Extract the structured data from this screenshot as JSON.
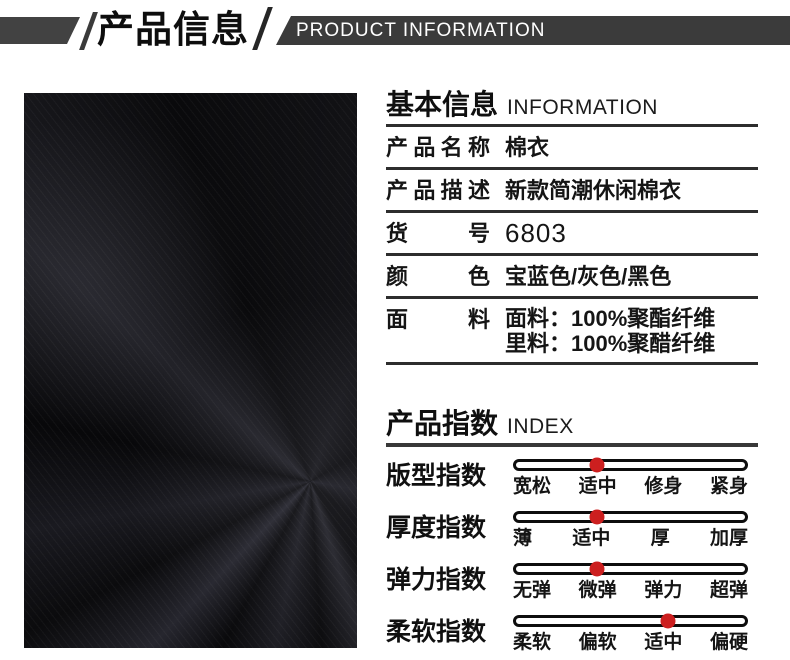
{
  "header": {
    "title_cn": "产品信息",
    "title_en": "PRODUCT INFORMATION"
  },
  "colors": {
    "accent_red": "#cc1f1f",
    "banner_dark": "#3b3b3b",
    "rule_dark": "#2d2d2d"
  },
  "product_image": {
    "alt": "黑色面料实拍图"
  },
  "basic_info": {
    "title_cn": "基本信息",
    "title_en": "INFORMATION",
    "rows": [
      {
        "label": "产品名称",
        "value": "棉衣"
      },
      {
        "label": "产品描述",
        "value": "新款简潮休闲棉衣"
      },
      {
        "label": "货号",
        "value": "6803"
      },
      {
        "label": "颜色",
        "value": "宝蓝色/灰色/黑色"
      },
      {
        "label": "面料",
        "value_line1": "面料：100%聚酯纤维",
        "value_line2": "里料：100%聚醋纤维"
      }
    ]
  },
  "index": {
    "title_cn": "产品指数",
    "title_en": "INDEX",
    "rows": [
      {
        "label": "版型指数",
        "options": [
          "宽松",
          "适中",
          "修身",
          "紧身"
        ],
        "selected": "适中",
        "dot_percent": 35.5
      },
      {
        "label": "厚度指数",
        "options": [
          "薄",
          "适中",
          "厚",
          "加厚"
        ],
        "selected": "适中",
        "dot_percent": 35.5
      },
      {
        "label": "弹力指数",
        "options": [
          "无弹",
          "微弹",
          "弹力",
          "超弹"
        ],
        "selected": "微弹",
        "dot_percent": 35.5
      },
      {
        "label": "柔软指数",
        "options": [
          "柔软",
          "偏软",
          "适中",
          "偏硬"
        ],
        "selected": "适中",
        "dot_percent": 66.5
      }
    ]
  }
}
